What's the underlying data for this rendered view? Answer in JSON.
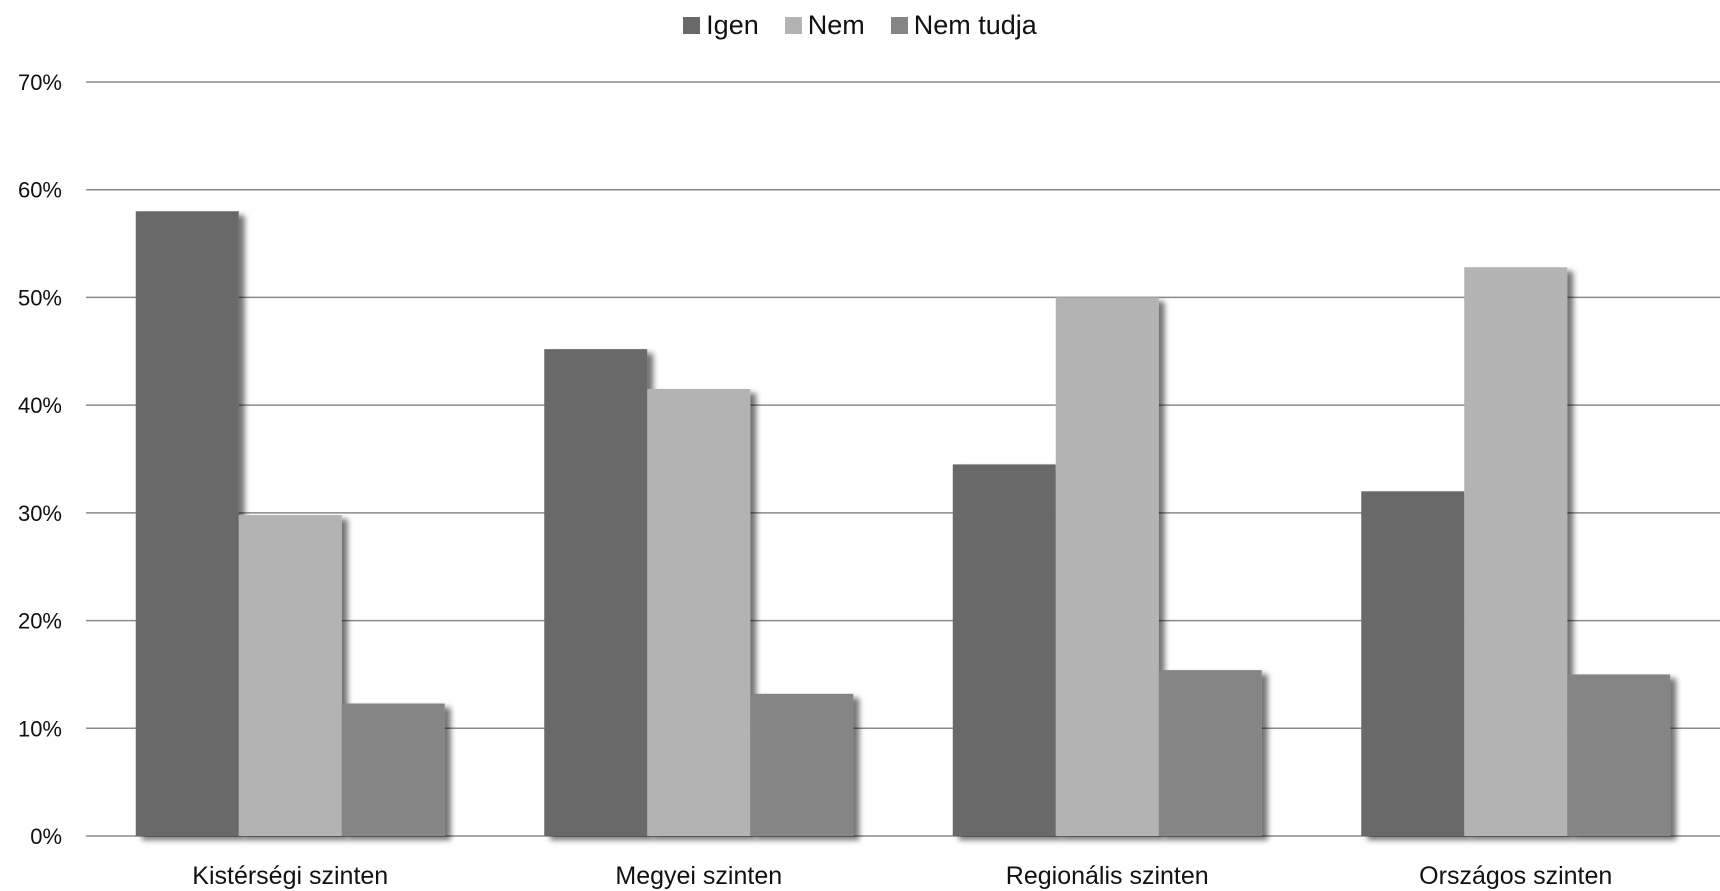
{
  "chart_data": {
    "type": "bar",
    "title": "",
    "xlabel": "",
    "ylabel": "",
    "ylim": [
      0,
      70
    ],
    "yticks": [
      "0%",
      "10%",
      "20%",
      "30%",
      "40%",
      "50%",
      "60%",
      "70%"
    ],
    "grid": true,
    "legend_position": "top-center",
    "categories": [
      "Kistérségi szinten",
      "Megyei szinten",
      "Regionális szinten",
      "Országos szinten"
    ],
    "series": [
      {
        "name": "Igen",
        "color": "#696969",
        "values": [
          58,
          45.2,
          34.5,
          32
        ]
      },
      {
        "name": "Nem",
        "color": "#b3b3b3",
        "values": [
          29.8,
          41.5,
          50,
          52.8
        ]
      },
      {
        "name": "Nem tudja",
        "color": "#858585",
        "values": [
          12.3,
          13.2,
          15.4,
          15
        ]
      }
    ]
  }
}
